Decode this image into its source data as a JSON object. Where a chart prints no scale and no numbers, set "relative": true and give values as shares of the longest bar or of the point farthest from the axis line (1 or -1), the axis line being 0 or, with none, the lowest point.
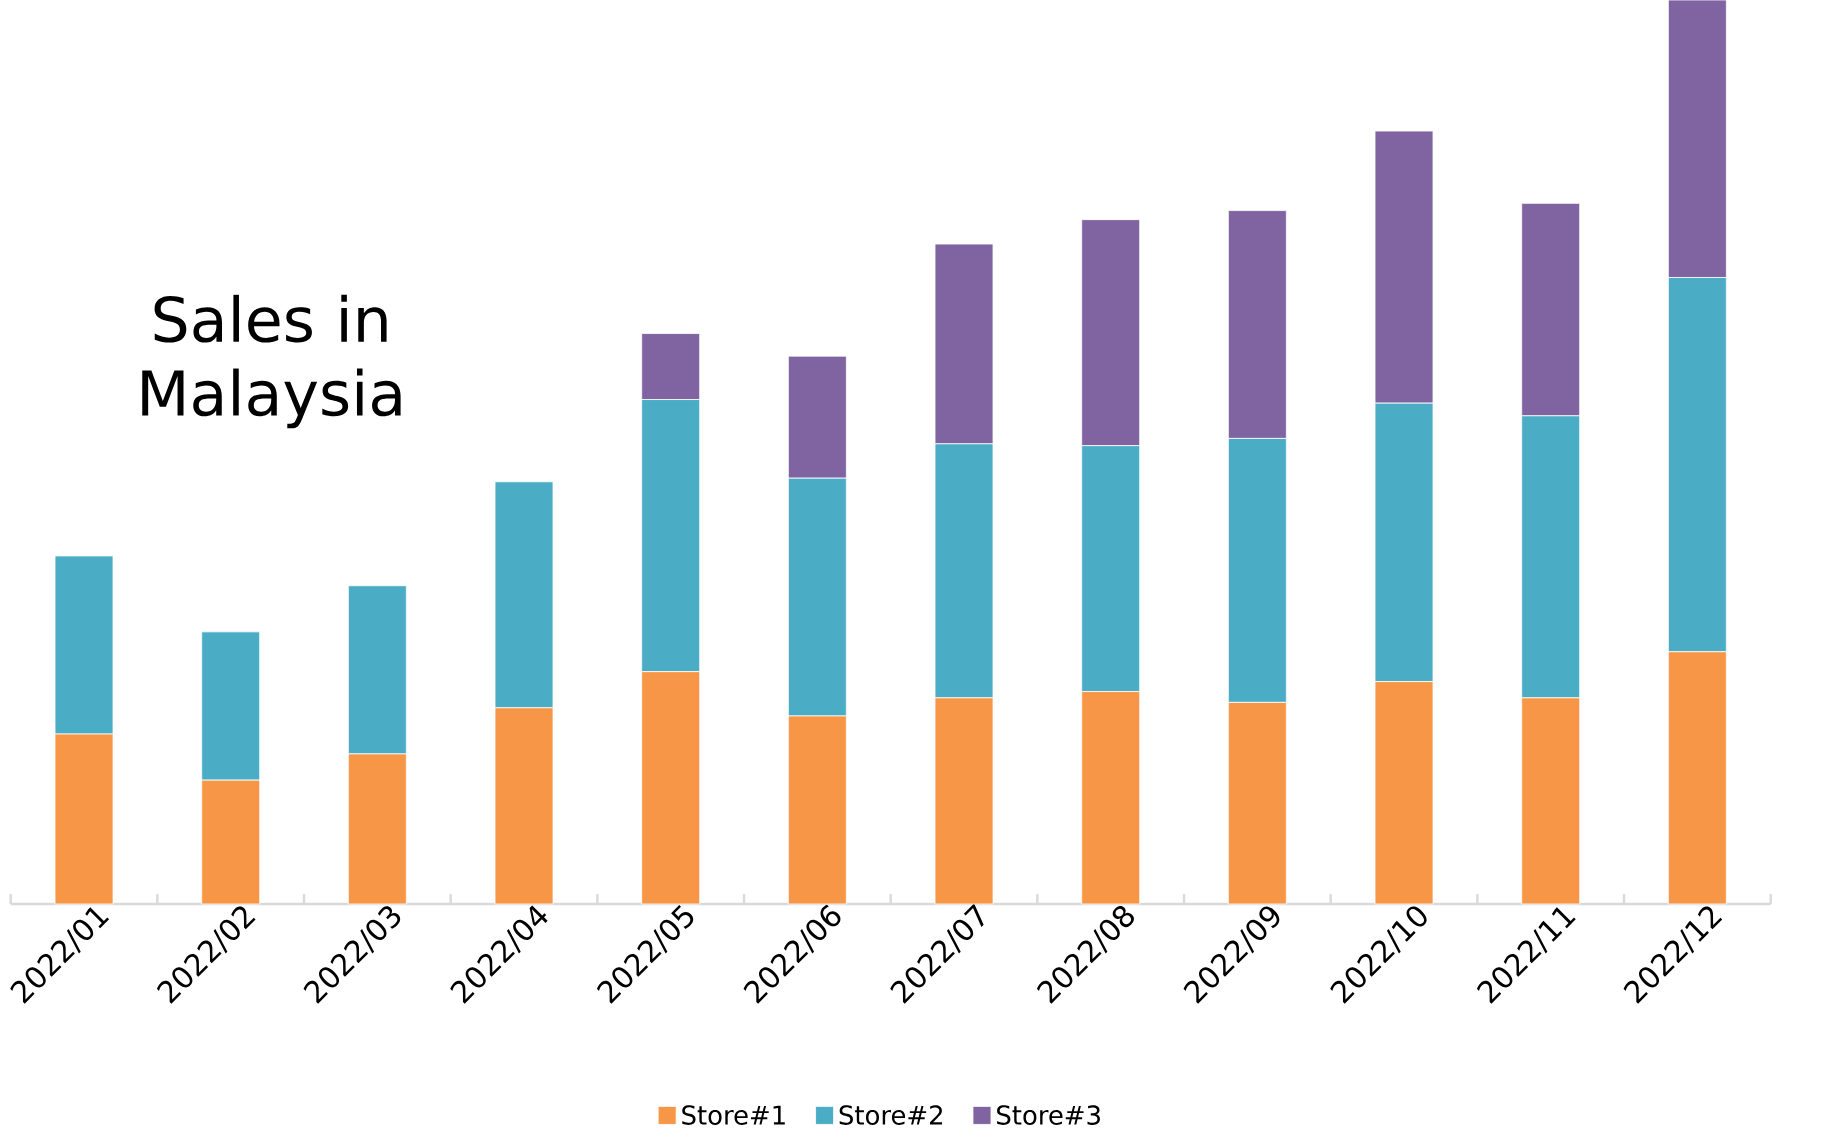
{
  "chart_data": {
    "type": "bar",
    "stacked": true,
    "relative": true,
    "legend": "bottom",
    "categories": [
      "2022/01",
      "2022/02",
      "2022/03",
      "2022/04",
      "2022/05",
      "2022/06",
      "2022/07",
      "2022/08",
      "2022/09",
      "2022/10",
      "2022/11",
      "2022/12"
    ],
    "series": [
      {
        "name": "Store#1",
        "color": "#f79646",
        "values": [
          0.188,
          0.137,
          0.166,
          0.217,
          0.257,
          0.208,
          0.228,
          0.235,
          0.223,
          0.246,
          0.228,
          0.279
        ]
      },
      {
        "name": "Store#2",
        "color": "#4bacc6",
        "values": [
          0.197,
          0.164,
          0.186,
          0.25,
          0.301,
          0.263,
          0.281,
          0.272,
          0.292,
          0.308,
          0.312,
          0.414
        ]
      },
      {
        "name": "Store#3",
        "color": "#8064a2",
        "values": [
          null,
          null,
          null,
          null,
          0.073,
          0.135,
          0.221,
          0.25,
          0.252,
          0.301,
          0.235,
          0.307
        ]
      }
    ],
    "annotations": [
      "Sales in Malaysia"
    ]
  }
}
